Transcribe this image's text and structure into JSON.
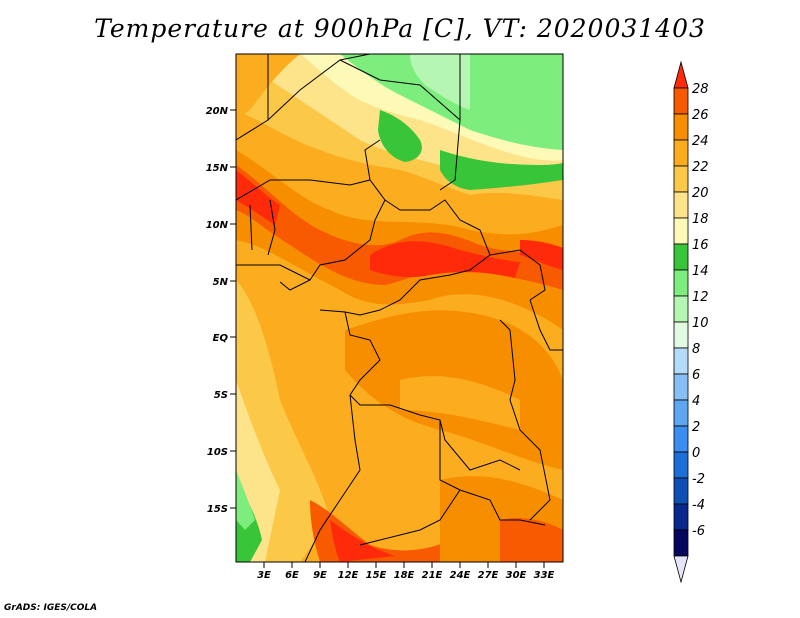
{
  "title": "Temperature at 900hPa [C], VT: 2020031403",
  "credit": "GrADS: IGES/COLA",
  "map": {
    "projection": "latlon",
    "lon_range": [
      0,
      35
    ],
    "lat_range": [
      -20,
      25
    ],
    "lat_ticks": [
      "20N",
      "15N",
      "10N",
      "5N",
      "EQ",
      "5S",
      "10S",
      "15S"
    ],
    "lon_ticks": [
      "3E",
      "6E",
      "9E",
      "12E",
      "15E",
      "18E",
      "21E",
      "24E",
      "27E",
      "30E",
      "33E"
    ],
    "field": "temperature",
    "level": "900hPa",
    "units": "C"
  },
  "colorbar": {
    "levels": [
      "28",
      "26",
      "24",
      "22",
      "20",
      "18",
      "16",
      "14",
      "12",
      "10",
      "8",
      "6",
      "4",
      "2",
      "0",
      "-2",
      "-4",
      "-6"
    ],
    "colors": [
      "#ff2a0a",
      "#f75a00",
      "#f78e00",
      "#fbad1f",
      "#fbc847",
      "#fde38a",
      "#fdfab8",
      "#39c539",
      "#7ded7d",
      "#b6f6b3",
      "#e1fae1",
      "#b4dbf8",
      "#87bff4",
      "#5da7f2",
      "#3b8ef0",
      "#1c6fd6",
      "#0d4fb4",
      "#08288e",
      "#06065e"
    ],
    "min_color": "#e5e5f9"
  }
}
